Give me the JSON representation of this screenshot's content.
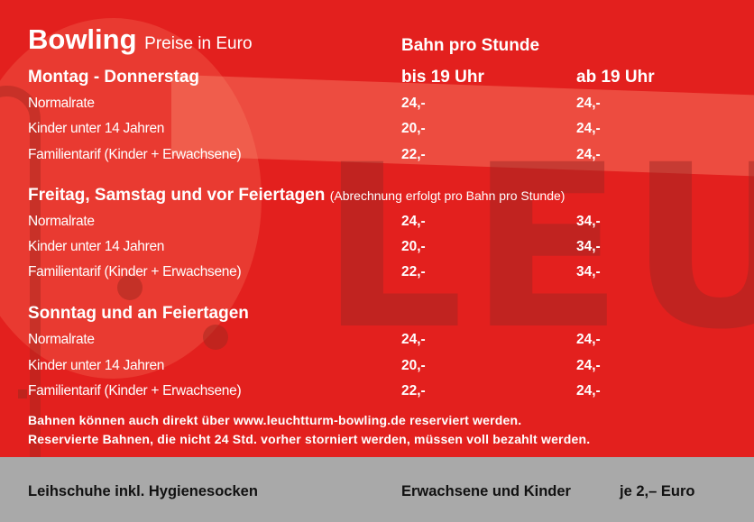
{
  "header": {
    "title": "Bowling",
    "subtitle": "Preise in Euro",
    "column_group": "Bahn pro Stunde",
    "col1": "bis 19 Uhr",
    "col2": "ab 19 Uhr"
  },
  "background_text": "LEUC",
  "sections": [
    {
      "heading": "Montag - Donnerstag",
      "note": "",
      "rows": [
        {
          "label": "Normalrate",
          "p1": "24,-",
          "p2": "24,-"
        },
        {
          "label": "Kinder unter 14 Jahren",
          "p1": "20,-",
          "p2": "24,-"
        },
        {
          "label": "Familientarif (Kinder + Erwachsene)",
          "p1": "22,-",
          "p2": "24,-"
        }
      ]
    },
    {
      "heading": "Freitag, Samstag und vor Feiertagen",
      "note": "(Abrechnung erfolgt pro Bahn pro Stunde)",
      "rows": [
        {
          "label": "Normalrate",
          "p1": "24,-",
          "p2": "34,-"
        },
        {
          "label": "Kinder unter 14 Jahren",
          "p1": "20,-",
          "p2": "34,-"
        },
        {
          "label": "Familientarif (Kinder + Erwachsene)",
          "p1": "22,-",
          "p2": "34,-"
        }
      ]
    },
    {
      "heading": "Sonntag und an Feiertagen",
      "note": "",
      "rows": [
        {
          "label": "Normalrate",
          "p1": "24,-",
          "p2": "24,-"
        },
        {
          "label": "Kinder unter 14 Jahren",
          "p1": "20,-",
          "p2": "24,-"
        },
        {
          "label": "Familientarif (Kinder + Erwachsene)",
          "p1": "22,-",
          "p2": "24,-"
        }
      ]
    }
  ],
  "notes": [
    "Bahnen können auch direkt über www.leuchtturm-bowling.de reserviert werden.",
    "Reservierte Bahnen, die nicht 24 Std. vorher storniert werden, müssen voll bezahlt werden."
  ],
  "footer": {
    "left": "Leihschuhe inkl. Hygienesocken",
    "middle": "Erwachsene und Kinder",
    "right": "je 2,– Euro"
  },
  "colors": {
    "background": "#e3201e",
    "footer": "#a9a9a9",
    "text": "#ffffff"
  }
}
